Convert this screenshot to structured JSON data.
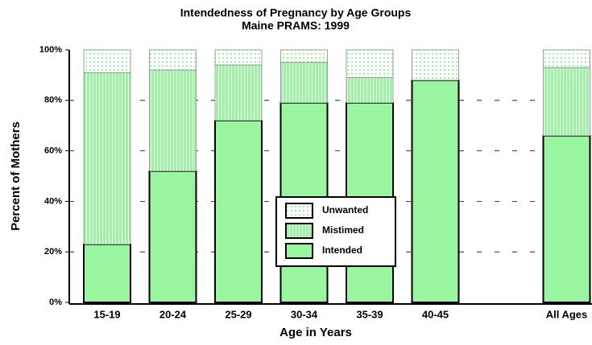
{
  "chart_data": {
    "type": "stacked-bar",
    "title": "Intendedness of Pregnancy by Age Groups",
    "subtitle": "Maine PRAMS: 1999",
    "x_label": "Age in Years",
    "y_label": "Percent of Mothers",
    "categories": [
      "15-19",
      "20-24",
      "25-29",
      "30-34",
      "35-39",
      "40-45",
      null,
      "All Ages"
    ],
    "series": [
      {
        "name": "Intended",
        "color": "#99f5a0",
        "pattern": "solid",
        "values": [
          23,
          52,
          72,
          79,
          79,
          88,
          null,
          66
        ]
      },
      {
        "name": "Mistimed",
        "color": "#99f5a0",
        "pattern": "vertical-lines",
        "values": [
          68,
          40,
          22,
          16,
          10,
          0,
          null,
          27
        ]
      },
      {
        "name": "Unwanted",
        "color": "#99f5a0",
        "pattern": "dots",
        "values": [
          9,
          8,
          6,
          5,
          11,
          12,
          null,
          7
        ]
      }
    ],
    "ylim": [
      0,
      100
    ],
    "yticks": [
      {
        "value": 0,
        "label": "0%"
      },
      {
        "value": 20,
        "label": "20%"
      },
      {
        "value": 40,
        "label": "40%"
      },
      {
        "value": 60,
        "label": "60%"
      },
      {
        "value": 80,
        "label": "80%"
      },
      {
        "value": 100,
        "label": "100%"
      }
    ],
    "grid": true,
    "legend": "center"
  }
}
